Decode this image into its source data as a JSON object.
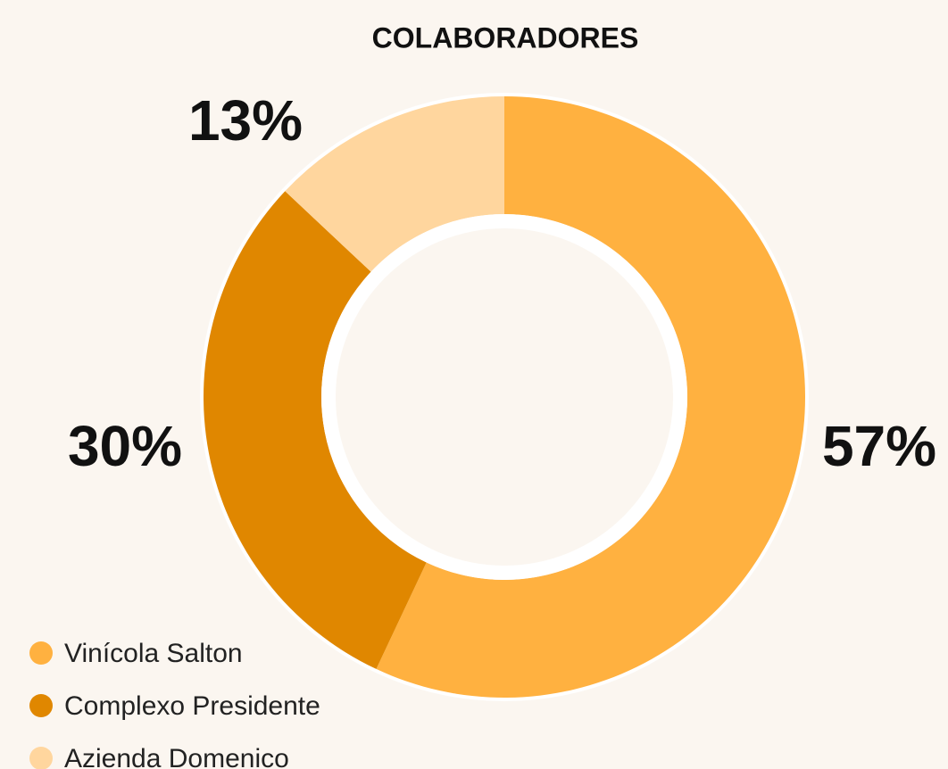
{
  "chart_data": {
    "type": "donut",
    "title": "COLABORADORES",
    "categories": [
      "Vinícola Salton",
      "Complexo Presidente",
      "Azienda Domenico"
    ],
    "values": [
      57,
      30,
      13
    ],
    "value_labels": [
      "57%",
      "30%",
      "13%"
    ],
    "colors": [
      "#ffb140",
      "#e08700",
      "#ffd69e"
    ],
    "legend": "bottom-left"
  }
}
